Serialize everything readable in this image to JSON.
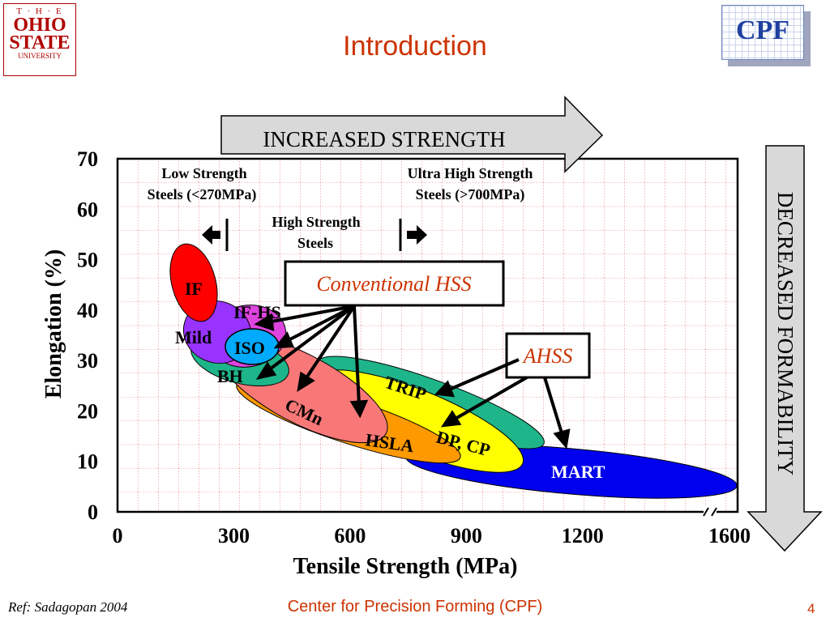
{
  "header": {
    "logo": {
      "line1": "T · H · E",
      "line2": "OHIO",
      "line3": "STATE",
      "line4": "UNIVERSITY"
    },
    "title": "Introduction",
    "cpf_badge": "CPF"
  },
  "chart_data": {
    "type": "scatter",
    "xlabel": "Tensile Strength (MPa)",
    "ylabel": "Elongation (%)",
    "xlim": [
      0,
      1600
    ],
    "ylim": [
      0,
      70
    ],
    "xticks": [
      "0",
      "300",
      "600",
      "900",
      "1200",
      "1600"
    ],
    "yticks": [
      "0",
      "10",
      "20",
      "30",
      "40",
      "50",
      "60",
      "70"
    ],
    "grid": true,
    "regions": [
      {
        "name": "MART",
        "center": [
          1150,
          8
        ],
        "color": "#0000ee",
        "label_color": "#ffffff"
      },
      {
        "name": "TRIP",
        "center": [
          720,
          27
        ],
        "color": "#1fb58a",
        "label_color": "#000000"
      },
      {
        "name": "DP, CP",
        "center": [
          820,
          18
        ],
        "color": "#ffff00",
        "label_color": "#000000"
      },
      {
        "name": "HSLA",
        "center": [
          600,
          16
        ],
        "color": "#ff9900",
        "label_color": "#000000"
      },
      {
        "name": "CMn",
        "center": [
          455,
          22
        ],
        "color": "#f87878",
        "label_color": "#000000"
      },
      {
        "name": "BH",
        "center": [
          300,
          31
        ],
        "color": "#1fb58a",
        "label_color": "#000000"
      },
      {
        "name": "IF-HS",
        "center": [
          330,
          41
        ],
        "color": "#dd44dd",
        "label_color": "#000000"
      },
      {
        "name": "Mild",
        "center": [
          190,
          38
        ],
        "color": "#9933ff",
        "label_color": "#000000"
      },
      {
        "name": "ISO",
        "center": [
          320,
          35
        ],
        "color": "#00aaff",
        "label_color": "#000000"
      },
      {
        "name": "IF",
        "center": [
          180,
          48
        ],
        "color": "#ff0000",
        "label_color": "#000000"
      }
    ],
    "annotations": {
      "low_strength": [
        "Low Strength",
        "Steels (<270MPa)"
      ],
      "high_strength": [
        "High Strength",
        "Steels"
      ],
      "ultra_high": [
        "Ultra High Strength",
        "Steels (>700MPa)"
      ],
      "conventional_hss": "Conventional HSS",
      "ahss": "AHSS"
    },
    "arrows": {
      "increased_strength": "INCREASED STRENGTH",
      "decreased_formability": "DECREASED FORMABILITY"
    }
  },
  "footer": {
    "ref": "Ref: Sadagopan 2004",
    "center": "Center for Precision Forming (CPF)",
    "page": "4"
  }
}
